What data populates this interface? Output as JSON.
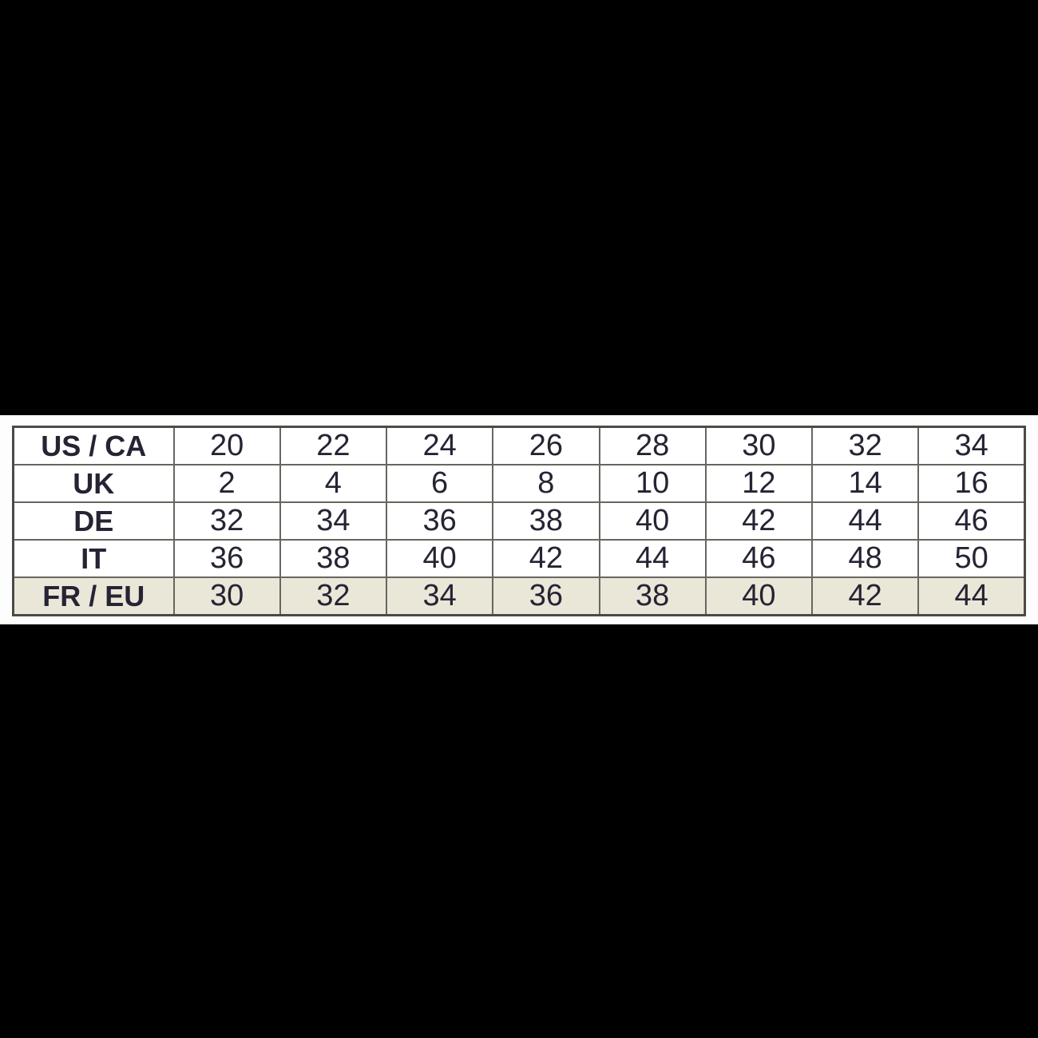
{
  "colors": {
    "page_background": "#000000",
    "band_background": "#fdfdfd",
    "cell_background": "#ffffff",
    "highlight_row_background": "#eae7d9",
    "border_outer": "#4b4a45",
    "border_inner": "#67665f",
    "text": "#272334"
  },
  "chart_data": {
    "type": "table",
    "description": "Clothing size conversion table across regions; FR / EU row highlighted in beige",
    "grid": "on",
    "rows": [
      {
        "label": "US / CA",
        "highlight": false,
        "values": [
          "20",
          "22",
          "24",
          "26",
          "28",
          "30",
          "32",
          "34"
        ]
      },
      {
        "label": "UK",
        "highlight": false,
        "values": [
          "2",
          "4",
          "6",
          "8",
          "10",
          "12",
          "14",
          "16"
        ]
      },
      {
        "label": "DE",
        "highlight": false,
        "values": [
          "32",
          "34",
          "36",
          "38",
          "40",
          "42",
          "44",
          "46"
        ]
      },
      {
        "label": "IT",
        "highlight": false,
        "values": [
          "36",
          "38",
          "40",
          "42",
          "44",
          "46",
          "48",
          "50"
        ]
      },
      {
        "label": "FR / EU",
        "highlight": true,
        "values": [
          "30",
          "32",
          "34",
          "36",
          "38",
          "40",
          "42",
          "44"
        ]
      }
    ]
  }
}
